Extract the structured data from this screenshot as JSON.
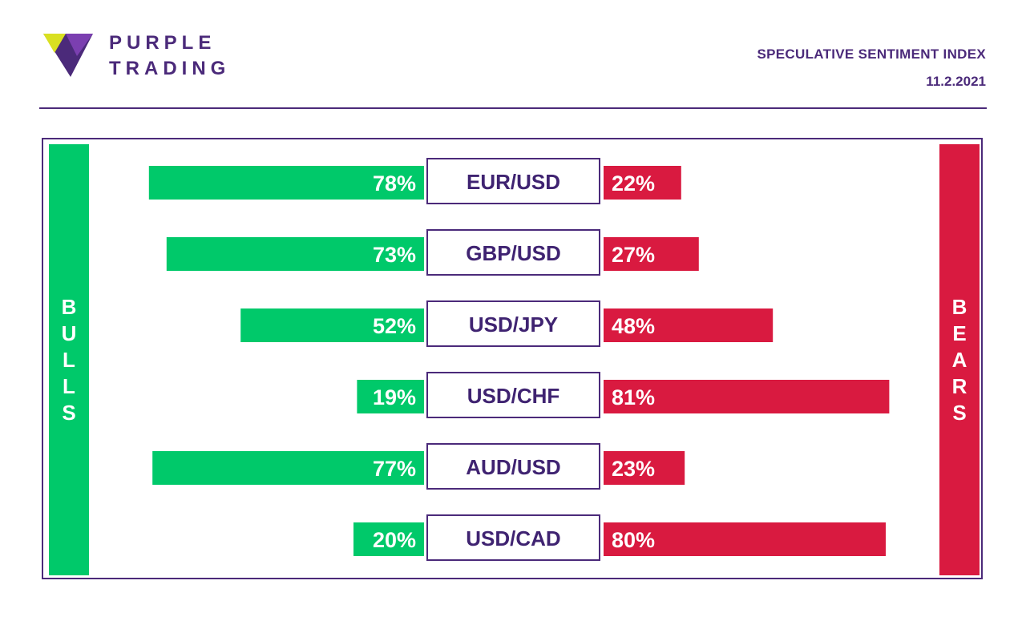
{
  "brand": {
    "line1": "PURPLE",
    "line2": "TRADING",
    "logo_icon": "purple-triangle-logo",
    "color": "#4b2a7a"
  },
  "header": {
    "title": "SPECULATIVE SENTIMENT INDEX",
    "date": "11.2.2021"
  },
  "sides": {
    "bulls": "BULLS",
    "bears": "BEARS"
  },
  "colors": {
    "bull": "#00c96a",
    "bear": "#d91a40",
    "accent": "#4b2a7a"
  },
  "chart_data": {
    "type": "bar",
    "title": "SPECULATIVE SENTIMENT INDEX",
    "categories": [
      "EUR/USD",
      "GBP/USD",
      "USD/JPY",
      "USD/CHF",
      "AUD/USD",
      "USD/CAD"
    ],
    "series": [
      {
        "name": "BULLS",
        "values": [
          78,
          73,
          52,
          19,
          77,
          20
        ]
      },
      {
        "name": "BEARS",
        "values": [
          22,
          27,
          48,
          81,
          23,
          80
        ]
      }
    ],
    "unit": "%"
  }
}
